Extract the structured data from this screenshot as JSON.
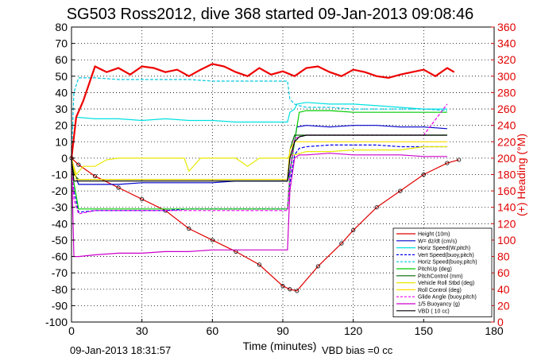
{
  "chart_data": {
    "type": "line",
    "title": "SG503 Ross2012, dive 368 started 09-Jan-2013 09:08:46",
    "xlabel": "Time (minutes)",
    "ylabel": "",
    "y2label": "(+) Heading (°M)",
    "xlim": [
      0,
      180
    ],
    "ylim": [
      -100,
      80
    ],
    "y2lim": [
      0,
      360
    ],
    "xticks": [
      "0",
      "30",
      "60",
      "90",
      "120",
      "150",
      "180"
    ],
    "yticks": [
      "-100",
      "-90",
      "-80",
      "-70",
      "-60",
      "-50",
      "-40",
      "-30",
      "-20",
      "-10",
      "0",
      "10",
      "20",
      "30",
      "40",
      "50",
      "60",
      "70",
      "80"
    ],
    "y2ticks": [
      "0",
      "20",
      "40",
      "60",
      "80",
      "100",
      "120",
      "140",
      "160",
      "180",
      "200",
      "220",
      "240",
      "260",
      "280",
      "300",
      "320",
      "340",
      "360"
    ],
    "grid": true,
    "legend_position": "bottom-right",
    "footer_left": "09-Jan-2013 18:31:57",
    "footer_right": "VBD bias =0 cc",
    "series": [
      {
        "name": "Height (10m)",
        "color": "#e00000",
        "x": [
          0,
          3,
          10,
          20,
          30,
          40,
          50,
          60,
          70,
          80,
          90,
          93,
          96,
          105,
          115,
          120,
          130,
          140,
          150,
          160,
          165
        ],
        "y": [
          0,
          -4,
          -11,
          -18,
          -25,
          -32,
          -43,
          -50,
          -57,
          -65,
          -78,
          -80,
          -81,
          -66,
          -52,
          -44,
          -30,
          -20,
          -10,
          -3,
          -1
        ]
      },
      {
        "name": "W= dz/dt (cm/s)",
        "color": "#0000cc",
        "x": [
          0,
          1,
          3,
          10,
          20,
          30,
          40,
          50,
          60,
          70,
          80,
          92,
          93,
          95,
          96,
          100,
          110,
          120,
          130,
          140,
          150,
          160
        ],
        "y": [
          0,
          -8,
          -16,
          -16,
          -16,
          -15,
          -15,
          -15,
          -15,
          -14,
          -14,
          -14,
          -8,
          10,
          19,
          20,
          19,
          20,
          20,
          19,
          19,
          18
        ]
      },
      {
        "name": "Horiz Speed(W,pitch)",
        "color": "#00e0e0",
        "x": [
          0,
          2,
          10,
          20,
          30,
          40,
          50,
          60,
          70,
          80,
          90,
          92,
          93,
          95,
          96,
          100,
          110,
          120,
          130,
          140,
          150,
          160
        ],
        "y": [
          0,
          25,
          24,
          24,
          23,
          24,
          23,
          23,
          22,
          22,
          22,
          22,
          28,
          30,
          33,
          34,
          33,
          33,
          32,
          31,
          30,
          30
        ]
      },
      {
        "name": "Vert Speed(buoy,pitch)",
        "color": "#0000ee",
        "x": [
          0,
          1,
          3,
          10,
          20,
          30,
          40,
          50,
          60,
          70,
          80,
          92,
          93,
          95,
          97,
          100,
          110,
          120,
          130,
          140,
          150,
          160
        ],
        "y": [
          0,
          -20,
          -33,
          -32,
          -32,
          -32,
          -32,
          -31,
          -31,
          -31,
          -31,
          -31,
          -15,
          2,
          6,
          7,
          8,
          8,
          8,
          7,
          7,
          7
        ]
      },
      {
        "name": "Horiz Speed(buoy,pitch)",
        "color": "#00c8e0",
        "x": [
          0,
          1,
          3,
          10,
          20,
          30,
          40,
          50,
          60,
          70,
          80,
          92,
          93,
          95,
          97,
          100,
          110,
          120,
          130,
          140,
          150,
          160
        ],
        "y": [
          0,
          40,
          49,
          49,
          48,
          48,
          48,
          48,
          47,
          47,
          47,
          47,
          36,
          33,
          32,
          31,
          31,
          30,
          30,
          30,
          30,
          29
        ]
      },
      {
        "name": "PitchUp (deg)",
        "color": "#00cc00",
        "x": [
          0,
          1,
          3,
          10,
          20,
          30,
          40,
          50,
          60,
          70,
          80,
          92,
          93,
          95,
          97,
          100,
          110,
          120,
          130,
          140,
          150,
          160
        ],
        "y": [
          0,
          -15,
          -31,
          -31,
          -31,
          -31,
          -31,
          -31,
          -31,
          -31,
          -31,
          -31,
          -10,
          10,
          28,
          29,
          29,
          28,
          28,
          28,
          28,
          28
        ]
      },
      {
        "name": "PitchControl (mm)",
        "color": "#006600",
        "x": [
          0,
          1,
          3,
          10,
          20,
          30,
          40,
          50,
          60,
          70,
          80,
          92,
          93,
          95,
          97,
          100,
          110,
          120,
          130,
          140,
          150,
          160
        ],
        "y": [
          0,
          -10,
          -13,
          -13,
          -13,
          -13,
          -13,
          -13,
          -13,
          -13,
          -13,
          -13,
          5,
          14,
          14,
          14,
          14,
          14,
          14,
          14,
          14,
          14
        ]
      },
      {
        "name": "Vehicle Roll Stbd (deg)",
        "color": "#e8e800",
        "x": [
          0,
          2,
          5,
          10,
          15,
          20,
          30,
          40,
          48,
          50,
          55,
          60,
          70,
          75,
          80,
          92,
          93,
          95,
          100,
          110,
          120,
          130,
          140,
          150,
          160
        ],
        "y": [
          0,
          -10,
          -5,
          -5,
          -1,
          0,
          0,
          0,
          0,
          -8,
          0,
          0,
          0,
          -5,
          0,
          0,
          2,
          2,
          4,
          4,
          5,
          5,
          5,
          7,
          7
        ]
      },
      {
        "name": "Roll Control (deg)",
        "color": "#ffe000",
        "x": [
          0,
          2,
          5,
          10,
          15,
          20,
          30,
          40,
          48,
          50,
          55,
          60,
          70,
          75,
          80,
          92,
          93,
          95,
          100,
          110,
          120,
          130,
          140,
          150,
          160
        ],
        "y": [
          0,
          -13,
          -13,
          -13,
          -13,
          -13,
          -13,
          -13,
          -13,
          -13,
          -13,
          -13,
          -13,
          -13,
          -13,
          -13,
          5,
          10,
          10,
          10,
          10,
          10,
          10,
          10,
          10
        ]
      },
      {
        "name": "Glide Angle (buoy,pitch)",
        "color": "#ee00ee",
        "x": [
          0,
          1,
          3,
          10,
          20,
          30,
          40,
          50,
          60,
          70,
          80,
          92,
          93,
          95,
          97,
          100,
          110,
          120,
          130,
          140,
          150,
          160
        ],
        "y": [
          0,
          -25,
          -34,
          -32,
          -32,
          -32,
          -32,
          -32,
          -32,
          -32,
          -32,
          -32,
          -10,
          12,
          13,
          14,
          14,
          14,
          14,
          14,
          14,
          33
        ]
      },
      {
        "name": "1/5 Buoyancy (g)",
        "color": "#cc00cc",
        "x": [
          0,
          1,
          3,
          10,
          20,
          30,
          40,
          50,
          60,
          70,
          80,
          92,
          93,
          95,
          97,
          100,
          110,
          120,
          130,
          140,
          150,
          160
        ],
        "y": [
          0,
          -60,
          -60,
          -59,
          -58,
          -58,
          -57,
          -57,
          -56,
          -56,
          -56,
          -56,
          -20,
          0,
          2,
          2,
          3,
          2,
          2,
          2,
          1,
          1
        ]
      },
      {
        "name": "VBD ( 10 cc)",
        "color": "#000000",
        "x": [
          0,
          1,
          3,
          10,
          20,
          30,
          40,
          50,
          60,
          70,
          80,
          92,
          93,
          95,
          97,
          100,
          110,
          120,
          130,
          140,
          150,
          160
        ],
        "y": [
          0,
          -14,
          -14,
          -14,
          -14,
          -14,
          -14,
          -14,
          -14,
          -14,
          -14,
          -14,
          0,
          10,
          13,
          14,
          14,
          14,
          14,
          14,
          14,
          14
        ]
      },
      {
        "name": "Heading",
        "axis": "right",
        "color": "#ee0000",
        "x": [
          0,
          2,
          5,
          10,
          15,
          20,
          25,
          30,
          35,
          40,
          45,
          50,
          55,
          60,
          65,
          70,
          75,
          80,
          85,
          90,
          95,
          100,
          105,
          110,
          115,
          120,
          125,
          130,
          135,
          140,
          145,
          150,
          155,
          160,
          163
        ],
        "y": [
          200,
          250,
          270,
          312,
          305,
          310,
          302,
          312,
          310,
          305,
          308,
          300,
          308,
          315,
          312,
          305,
          300,
          310,
          302,
          306,
          300,
          310,
          312,
          305,
          300,
          308,
          305,
          300,
          298,
          302,
          305,
          308,
          300,
          310,
          305
        ]
      }
    ]
  }
}
